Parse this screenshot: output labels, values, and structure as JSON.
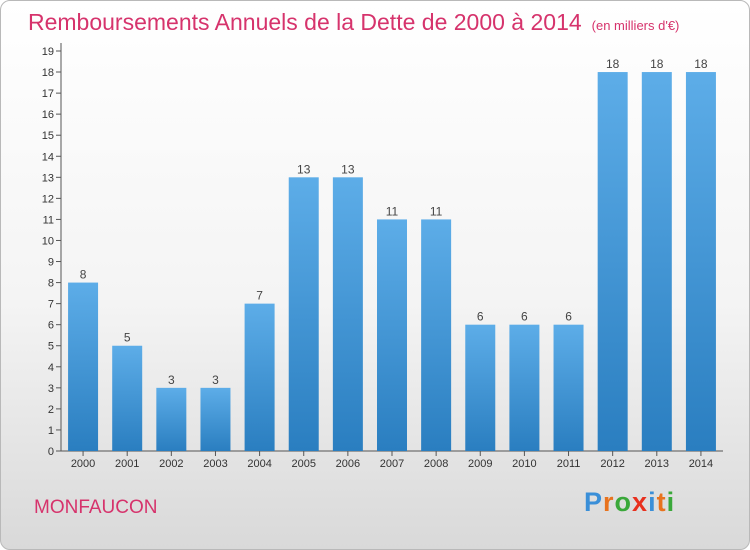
{
  "header": {
    "title": "Remboursements Annuels de la Dette de 2000 à 2014",
    "subtitle": "(en milliers d'€)"
  },
  "footer": {
    "town": "MONFAUCON",
    "logo": "Proxiti"
  },
  "colors": {
    "title": "#d6336c",
    "bar_light": "#5dade8",
    "bar_dark": "#2a7ec0",
    "logo_letters": [
      "#3a8fd8",
      "#e8731e",
      "#3aa83a",
      "#e8301e",
      "#3a8fd8",
      "#e8731e",
      "#3aa83a"
    ]
  },
  "chart_data": {
    "type": "bar",
    "title": "Remboursements Annuels de la Dette de 2000 à 2014",
    "subtitle": "(en milliers d'€)",
    "xlabel": "",
    "ylabel": "",
    "categories": [
      "2000",
      "2001",
      "2002",
      "2003",
      "2004",
      "2005",
      "2006",
      "2007",
      "2008",
      "2009",
      "2010",
      "2011",
      "2012",
      "2013",
      "2014"
    ],
    "values": [
      8,
      5,
      3,
      3,
      7,
      13,
      13,
      11,
      11,
      6,
      6,
      6,
      18,
      18,
      18
    ],
    "data_labels": [
      "8",
      "5",
      "3",
      "3",
      "7",
      "13",
      "13",
      "11",
      "11",
      "6",
      "6",
      "6",
      "18",
      "18",
      "18"
    ],
    "y_ticks": [
      "0",
      "1",
      "2",
      "3",
      "4",
      "5",
      "6",
      "7",
      "8",
      "9",
      "10",
      "11",
      "12",
      "13",
      "14",
      "15",
      "16",
      "17",
      "18",
      "19"
    ],
    "ylim": [
      0,
      19
    ],
    "grid": false,
    "legend": "none"
  }
}
